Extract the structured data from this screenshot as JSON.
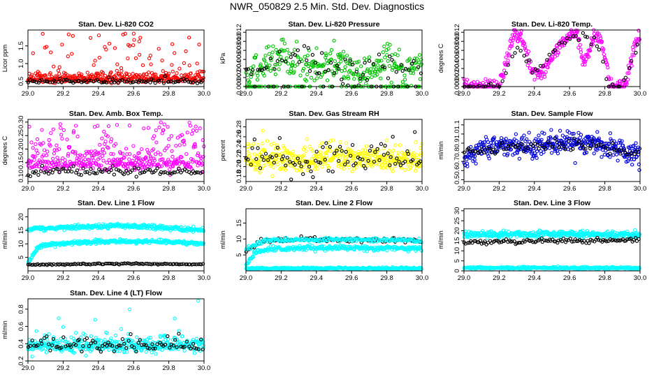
{
  "figure_title": "NWR_050829  2.5 Min. Std. Dev. Diagnostics",
  "colors": {
    "red": "#ff0000",
    "green": "#00c400",
    "magenta": "#ff00ff",
    "yellow": "#ffff00",
    "blue": "#0000dd",
    "cyan": "#00ffff",
    "black": "#000000"
  },
  "chart_data": [
    {
      "type": "scatter",
      "title": "Stan. Dev. Li-820 CO2",
      "ylabel": "Licor ppm",
      "xlim": [
        29.0,
        30.0
      ],
      "ylim": [
        0.35,
        1.95
      ],
      "xticks": [
        "29.0",
        "29.2",
        "29.4",
        "29.6",
        "29.8",
        "30.0"
      ],
      "yticks": [
        0.5,
        1.0,
        1.5
      ],
      "ytick_labels": [
        "0.5",
        "1.0",
        "1.5"
      ],
      "series": [
        {
          "name": "primary",
          "color": "red",
          "model": "noisy",
          "base": 0.58,
          "noise": 0.1,
          "spike_p": 0.12,
          "spike_range": [
            0.7,
            1.85
          ],
          "n": 420,
          "seed": 11
        },
        {
          "name": "reference",
          "color": "black",
          "model": "noisy",
          "base": 0.5,
          "noise": 0.04,
          "n": 90,
          "seed": 12
        }
      ]
    },
    {
      "type": "scatter",
      "title": "Stan. Dev. Li-820 Pressure",
      "ylabel": "kPa",
      "xlim": [
        29.0,
        30.0
      ],
      "ylim": [
        0.0,
        0.0125
      ],
      "xticks": [
        "29.0",
        "29.2",
        "29.4",
        "29.6",
        "29.8",
        "30.0"
      ],
      "yticks": [
        0.0,
        0.002,
        0.004,
        0.006,
        0.008,
        0.01,
        0.012
      ],
      "ytick_labels": [
        "0.000",
        "0.002",
        "0.004",
        "0.006",
        "0.008",
        "0.010",
        "0.012"
      ],
      "series": [
        {
          "name": "primary",
          "color": "green",
          "model": "curve",
          "curve": [
            [
              29.0,
              0.002
            ],
            [
              29.1,
              0.005
            ],
            [
              29.2,
              0.007
            ],
            [
              29.3,
              0.005
            ],
            [
              29.4,
              0.004
            ],
            [
              29.5,
              0.006
            ],
            [
              29.6,
              0.004
            ],
            [
              29.7,
              0.003
            ],
            [
              29.8,
              0.007
            ],
            [
              29.9,
              0.003
            ],
            [
              30.0,
              0.005
            ]
          ],
          "noise": 0.0018,
          "floor_p": 0.18,
          "n": 360,
          "seed": 21
        },
        {
          "name": "reference",
          "color": "black",
          "model": "curve",
          "curve": [
            [
              29.0,
              0.002
            ],
            [
              29.2,
              0.006
            ],
            [
              29.4,
              0.004
            ],
            [
              29.6,
              0.003
            ],
            [
              29.8,
              0.004
            ],
            [
              30.0,
              0.003
            ]
          ],
          "noise": 0.0015,
          "floor_p": 0.25,
          "n": 80,
          "seed": 22
        }
      ]
    },
    {
      "type": "scatter",
      "title": "Stan. Dev. Li-820 Temp.",
      "ylabel": "degrees C",
      "xlim": [
        29.0,
        30.0
      ],
      "ylim": [
        0.0,
        0.0125
      ],
      "xticks": [
        "29.0",
        "29.2",
        "29.4",
        "29.6",
        "29.8",
        "30.0"
      ],
      "yticks": [
        0.0,
        0.002,
        0.004,
        0.006,
        0.008,
        0.01,
        0.012
      ],
      "ytick_labels": [
        "0.000",
        "0.002",
        "0.004",
        "0.006",
        "0.008",
        "0.010",
        "0.012"
      ],
      "series": [
        {
          "name": "primary",
          "color": "magenta",
          "model": "curve",
          "curve": [
            [
              29.0,
              0.0
            ],
            [
              29.2,
              0.0
            ],
            [
              29.22,
              0.003
            ],
            [
              29.28,
              0.011
            ],
            [
              29.33,
              0.011
            ],
            [
              29.38,
              0.004
            ],
            [
              29.44,
              0.003
            ],
            [
              29.5,
              0.006
            ],
            [
              29.58,
              0.011
            ],
            [
              29.64,
              0.012
            ],
            [
              29.68,
              0.005
            ],
            [
              29.74,
              0.011
            ],
            [
              29.77,
              0.011
            ],
            [
              29.8,
              0.007
            ],
            [
              29.83,
              0.0
            ],
            [
              29.92,
              0.0
            ],
            [
              29.96,
              0.008
            ],
            [
              30.0,
              0.012
            ]
          ],
          "noise": 0.0008,
          "n": 360,
          "seed": 31
        },
        {
          "name": "reference",
          "color": "black",
          "model": "curve",
          "curve": [
            [
              29.0,
              0.0
            ],
            [
              29.2,
              0.0
            ],
            [
              29.3,
              0.009
            ],
            [
              29.4,
              0.003
            ],
            [
              29.55,
              0.01
            ],
            [
              29.65,
              0.011
            ],
            [
              29.75,
              0.01
            ],
            [
              29.82,
              0.0
            ],
            [
              29.9,
              0.0
            ],
            [
              30.0,
              0.011
            ]
          ],
          "noise": 0.0006,
          "n": 60,
          "seed": 32
        }
      ]
    },
    {
      "type": "scatter",
      "title": "Stan. Dev. Amb. Box Temp.",
      "ylabel": "degrees C",
      "xlim": [
        29.0,
        30.0
      ],
      "ylim": [
        0.08,
        0.31
      ],
      "xticks": [
        "29.0",
        "29.2",
        "29.4",
        "29.6",
        "29.8",
        "30.0"
      ],
      "yticks": [
        0.1,
        0.15,
        0.2,
        0.25,
        0.3
      ],
      "ytick_labels": [
        "0.10",
        "0.15",
        "0.20",
        "0.25",
        "0.30"
      ],
      "series": [
        {
          "name": "primary",
          "color": "magenta",
          "model": "noisy",
          "base": 0.15,
          "noise": 0.025,
          "spike_p": 0.22,
          "spike_range": [
            0.18,
            0.3
          ],
          "n": 420,
          "seed": 41
        },
        {
          "name": "reference",
          "color": "black",
          "model": "noisy",
          "base": 0.115,
          "noise": 0.01,
          "n": 90,
          "seed": 42
        }
      ]
    },
    {
      "type": "scatter",
      "title": "Stan. Dev. Gas Stream RH",
      "ylabel": "percent",
      "xlim": [
        29.0,
        30.0
      ],
      "ylim": [
        0.17,
        0.295
      ],
      "xticks": [
        "29.0",
        "29.2",
        "29.4",
        "29.6",
        "29.8",
        "30.0"
      ],
      "yticks": [
        0.18,
        0.2,
        0.22,
        0.24,
        0.26,
        0.28
      ],
      "ytick_labels": [
        "0.18",
        "0.20",
        "0.22",
        "0.24",
        "0.26",
        "0.28"
      ],
      "series": [
        {
          "name": "primary",
          "color": "yellow",
          "model": "noisy",
          "base": 0.215,
          "noise": 0.018,
          "n": 420,
          "seed": 51
        },
        {
          "name": "reference",
          "color": "black",
          "model": "noisy",
          "base": 0.215,
          "noise": 0.022,
          "n": 90,
          "seed": 52
        }
      ]
    },
    {
      "type": "scatter",
      "title": "Stan. Dev. Sample Flow",
      "ylabel": "ml/min",
      "xlim": [
        29.0,
        30.0
      ],
      "ylim": [
        0.48,
        1.16
      ],
      "xticks": [
        "29.0",
        "29.2",
        "29.4",
        "29.6",
        "29.8",
        "30.0"
      ],
      "yticks": [
        0.5,
        0.6,
        0.7,
        0.8,
        0.9,
        1.0,
        1.1
      ],
      "ytick_labels": [
        "0.5",
        "0.6",
        "0.7",
        "0.8",
        "0.9",
        "1.0",
        "1.1"
      ],
      "series": [
        {
          "name": "primary",
          "color": "blue",
          "model": "curve",
          "curve": [
            [
              29.0,
              0.72
            ],
            [
              29.1,
              0.86
            ],
            [
              29.3,
              0.88
            ],
            [
              29.4,
              0.86
            ],
            [
              29.6,
              0.92
            ],
            [
              29.7,
              0.93
            ],
            [
              29.85,
              0.84
            ],
            [
              30.0,
              0.75
            ]
          ],
          "noise": 0.06,
          "n": 420,
          "seed": 61
        },
        {
          "name": "reference",
          "color": "black",
          "model": "curve",
          "curve": [
            [
              29.0,
              0.8
            ],
            [
              29.3,
              0.85
            ],
            [
              29.6,
              0.9
            ],
            [
              29.8,
              0.86
            ],
            [
              30.0,
              0.78
            ]
          ],
          "noise": 0.03,
          "n": 80,
          "seed": 62
        }
      ]
    },
    {
      "type": "scatter",
      "title": "Stan. Dev. Line 1 Flow",
      "ylabel": "ml/min",
      "xlim": [
        29.0,
        30.0
      ],
      "ylim": [
        0.0,
        23.0
      ],
      "xticks": [
        "29.0",
        "29.2",
        "29.4",
        "29.6",
        "29.8",
        "30.0"
      ],
      "yticks": [
        5,
        10,
        15,
        20
      ],
      "ytick_labels": [
        "5",
        "10",
        "15",
        "20"
      ],
      "series": [
        {
          "name": "upper",
          "color": "cyan",
          "model": "curve",
          "curve": [
            [
              29.0,
              15.5
            ],
            [
              29.2,
              16.0
            ],
            [
              29.5,
              16.8
            ],
            [
              29.7,
              16.3
            ],
            [
              30.0,
              15.0
            ]
          ],
          "noise": 0.4,
          "n": 330,
          "seed": 71
        },
        {
          "name": "middle",
          "color": "cyan",
          "model": "curve",
          "curve": [
            [
              29.0,
              3.0
            ],
            [
              29.04,
              7.0
            ],
            [
              29.08,
              9.5
            ],
            [
              29.2,
              10.2
            ],
            [
              29.5,
              11.0
            ],
            [
              29.8,
              10.8
            ],
            [
              30.0,
              10.0
            ]
          ],
          "noise": 0.35,
          "n": 330,
          "seed": 72
        },
        {
          "name": "lower",
          "color": "black",
          "model": "curve",
          "curve": [
            [
              29.0,
              2.3
            ],
            [
              29.5,
              2.7
            ],
            [
              30.0,
              2.4
            ]
          ],
          "noise": 0.12,
          "n": 110,
          "seed": 73
        }
      ]
    },
    {
      "type": "scatter",
      "title": "Stan. Dev. Line 2 Flow",
      "ylabel": "ml/min",
      "xlim": [
        29.0,
        30.0
      ],
      "ylim": [
        0.0,
        19.5
      ],
      "xticks": [
        "29.0",
        "29.2",
        "29.4",
        "29.6",
        "29.8",
        "30.0"
      ],
      "yticks": [
        5,
        10,
        15
      ],
      "ytick_labels": [
        "5",
        "10",
        "15"
      ],
      "series": [
        {
          "name": "upper",
          "color": "black",
          "model": "curve",
          "curve": [
            [
              29.0,
              6.0
            ],
            [
              29.08,
              9.5
            ],
            [
              29.3,
              9.8
            ],
            [
              29.6,
              9.8
            ],
            [
              30.0,
              9.5
            ]
          ],
          "noise": 0.35,
          "n": 110,
          "seed": 81
        },
        {
          "name": "upper-cyan",
          "color": "cyan",
          "model": "curve",
          "curve": [
            [
              29.0,
              6.5
            ],
            [
              29.1,
              9.6
            ],
            [
              29.5,
              9.8
            ],
            [
              30.0,
              9.6
            ]
          ],
          "noise": 0.3,
          "n": 200,
          "seed": 82
        },
        {
          "name": "middle",
          "color": "cyan",
          "model": "curve",
          "curve": [
            [
              29.0,
              2.0
            ],
            [
              29.06,
              6.0
            ],
            [
              29.15,
              7.0
            ],
            [
              29.5,
              7.3
            ],
            [
              30.0,
              7.0
            ]
          ],
          "noise": 0.35,
          "n": 300,
          "seed": 83
        },
        {
          "name": "lower",
          "color": "cyan",
          "model": "curve",
          "curve": [
            [
              29.0,
              0.8
            ],
            [
              30.0,
              0.8
            ]
          ],
          "noise": 0.15,
          "n": 280,
          "seed": 84
        }
      ]
    },
    {
      "type": "scatter",
      "title": "Stan. Dev. Line 3 Flow",
      "ylabel": "ml/min",
      "xlim": [
        29.0,
        30.0
      ],
      "ylim": [
        0.0,
        31.0
      ],
      "xticks": [
        "29.0",
        "29.2",
        "29.4",
        "29.6",
        "29.8",
        "30.0"
      ],
      "yticks": [
        0,
        5,
        10,
        15,
        20,
        25,
        30
      ],
      "ytick_labels": [
        "0",
        "5",
        "10",
        "15",
        "20",
        "25",
        "30"
      ],
      "series": [
        {
          "name": "upper",
          "color": "cyan",
          "model": "curve",
          "curve": [
            [
              29.0,
              18.0
            ],
            [
              29.5,
              18.3
            ],
            [
              30.0,
              18.0
            ]
          ],
          "noise": 0.8,
          "n": 380,
          "seed": 91
        },
        {
          "name": "middle",
          "color": "black",
          "model": "curve",
          "curve": [
            [
              29.0,
              14.0
            ],
            [
              29.5,
              15.0
            ],
            [
              30.0,
              15.5
            ]
          ],
          "noise": 0.6,
          "n": 110,
          "seed": 92
        },
        {
          "name": "lower",
          "color": "cyan",
          "model": "curve",
          "curve": [
            [
              29.0,
              1.5
            ],
            [
              30.0,
              1.5
            ]
          ],
          "noise": 0.3,
          "n": 300,
          "seed": 93
        }
      ]
    },
    {
      "type": "scatter",
      "title": "Stan. Dev. Line 4 (LT) Flow",
      "ylabel": "ml/min",
      "xlim": [
        29.0,
        30.0
      ],
      "ylim": [
        0.2,
        0.92
      ],
      "xticks": [
        "29.0",
        "29.2",
        "29.4",
        "29.6",
        "29.8",
        "30.0"
      ],
      "yticks": [
        0.2,
        0.4,
        0.6,
        0.8
      ],
      "ytick_labels": [
        "0.2",
        "0.4",
        "0.6",
        "0.8"
      ],
      "series": [
        {
          "name": "primary",
          "color": "cyan",
          "model": "noisy",
          "base": 0.38,
          "noise": 0.06,
          "spike_p": 0.02,
          "spike_range": [
            0.55,
            0.9
          ],
          "n": 420,
          "seed": 101
        },
        {
          "name": "reference",
          "color": "black",
          "model": "noisy",
          "base": 0.38,
          "noise": 0.05,
          "n": 90,
          "seed": 102
        }
      ]
    }
  ]
}
